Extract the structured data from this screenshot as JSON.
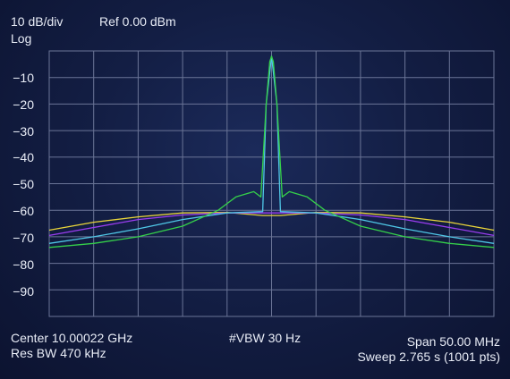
{
  "header": {
    "scale": "10 dB/div",
    "ref": "Ref 0.00 dBm",
    "mode": "Log"
  },
  "footer": {
    "center": "Center 10.00022 GHz",
    "res_bw": "Res BW 470 kHz",
    "vbw": "#VBW 30 Hz",
    "span": "Span 50.00 MHz",
    "sweep": "Sweep 2.765 s (1001 pts)"
  },
  "colors": {
    "grid": "#6b7597",
    "trace_green": "#35d04a",
    "trace_cyan": "#4fc6e6",
    "trace_yellow": "#e8d43a",
    "trace_purple": "#9a3df0",
    "peak": "#4ef07a"
  },
  "chart_data": {
    "type": "line",
    "y_tick_labels": [
      "−10",
      "−20",
      "−30",
      "−40",
      "−50",
      "−60",
      "−70",
      "−80",
      "−90"
    ],
    "ylim": [
      -100,
      0
    ],
    "xlim": [
      -25,
      25
    ],
    "x_unit": "MHz offset from center",
    "grid": true,
    "series": [
      {
        "color": "#35d04a",
        "x": [
          -25,
          -20,
          -15,
          -10,
          -6,
          -4,
          -2,
          -1.2,
          -0.6,
          -0.2,
          0,
          0.2,
          0.6,
          1.2,
          2,
          4,
          6,
          10,
          15,
          20,
          25
        ],
        "y": [
          -74,
          -72.5,
          -70,
          -66,
          -60,
          -55,
          -53,
          -55,
          -20,
          -4,
          -2,
          -4,
          -20,
          -55,
          -53,
          -55,
          -60,
          -66,
          -70,
          -72.5,
          -74
        ]
      },
      {
        "color": "#4fc6e6",
        "x": [
          -25,
          -20,
          -15,
          -10,
          -5,
          -1,
          -0.6,
          0,
          0.6,
          1,
          5,
          10,
          15,
          20,
          25
        ],
        "y": [
          -72.5,
          -70,
          -67,
          -63.5,
          -61,
          -60.5,
          -20,
          -2,
          -20,
          -60.5,
          -61,
          -63.5,
          -67,
          -70,
          -72.5
        ]
      },
      {
        "color": "#e8d43a",
        "x": [
          -25,
          -20,
          -15,
          -10,
          -5,
          -1,
          1,
          5,
          10,
          15,
          20,
          25
        ],
        "y": [
          -67.5,
          -64.5,
          -62.5,
          -61,
          -60.8,
          -62,
          -62,
          -60.8,
          -61,
          -62.5,
          -64.5,
          -67.5
        ]
      },
      {
        "color": "#9a3df0",
        "x": [
          -25,
          -20,
          -15,
          -10,
          -5,
          -1,
          1,
          5,
          10,
          15,
          20,
          25
        ],
        "y": [
          -69.5,
          -66.5,
          -63.5,
          -61.8,
          -61,
          -61,
          -61,
          -61,
          -61.8,
          -63.5,
          -66.5,
          -69.5
        ]
      }
    ]
  }
}
